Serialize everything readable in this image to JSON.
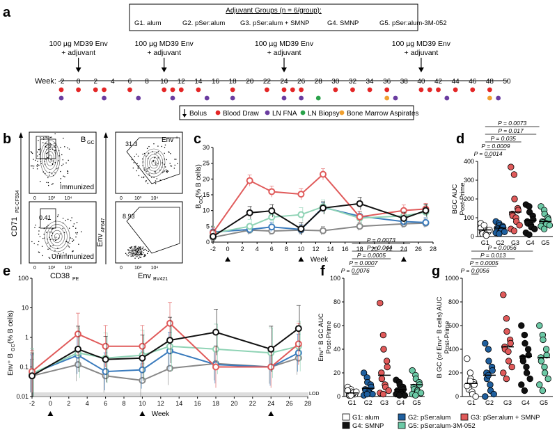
{
  "colors": {
    "G1": "#ffffff",
    "G2": "#1f5f9e",
    "G3": "#e05a5a",
    "G4": "#111111",
    "G5": "#6cc9a6",
    "line_G1": "#888888",
    "line_G2": "#3a7bbd",
    "line_G3": "#e05a5a",
    "line_G4": "#111111",
    "line_G5": "#8fd3b5",
    "blood": "#e32626",
    "fna": "#6a3ca0",
    "biopsy": "#2aa24a",
    "marrow": "#f0a030"
  },
  "panel_a": {
    "label": "a",
    "groups_title": "Adjuvant Groups (n = 6/group):",
    "groups": [
      "G1. alum",
      "G2. pSer:alum",
      "G3. pSer:alum + SMNP",
      "G4. SMNP",
      "G5. pSer:alum-3M-052"
    ],
    "immunization_label": [
      "100 µg MD39 Env",
      "+ adjuvant"
    ],
    "immunization_weeks": [
      0,
      10,
      24,
      40
    ],
    "week_label": "Week:",
    "weeks": [
      -2,
      0,
      2,
      4,
      6,
      8,
      10,
      12,
      14,
      16,
      18,
      20,
      22,
      24,
      26,
      28,
      30,
      32,
      34,
      36,
      38,
      40,
      42,
      44,
      46,
      48,
      50
    ],
    "blood_draw_weeks": [
      -2,
      0,
      2,
      3,
      6,
      10,
      11,
      12,
      14,
      18,
      22,
      24,
      25,
      26,
      30,
      32,
      34,
      36,
      40,
      41,
      42,
      44,
      46,
      48
    ],
    "fna_weeks": [
      -2,
      3,
      7,
      11,
      15,
      18,
      24,
      26,
      37,
      43,
      49
    ],
    "biopsy_weeks": [
      28
    ],
    "marrow_weeks": [
      36,
      48
    ],
    "legend": {
      "bolus": "Bolus",
      "blood": "Blood Draw",
      "fna": "LN FNA",
      "biopsy": "LN Biopsy",
      "marrow": "Bone Marrow Aspirates"
    }
  },
  "panel_b": {
    "label": "b",
    "gate1_name": "B",
    "gate1_sub": "GC",
    "gate2_name": "Env",
    "gate2_sup": "+",
    "immunized_pct1": "29.2",
    "unimmunized_pct1": "0.41",
    "immunized_pct2": "31.3",
    "unimmunized_pct2": "8.93",
    "immunized": "Immunized",
    "unimmunized": "Unimmunized",
    "ylabel1": "CD71",
    "ylabel1_sub": "PE-CF594",
    "xlabel1": "CD38",
    "xlabel1_sub": "PE",
    "ylabel2": "Env",
    "ylabel2_sub": "AF647",
    "xlabel2": "Env",
    "xlabel2_sub": "BV421",
    "ticks": [
      "0",
      "10³",
      "10⁴"
    ]
  },
  "chart_data": [
    {
      "id": "c",
      "type": "line",
      "title": "",
      "ylabel": "B_GC (% B cells)",
      "xlabel": "Week",
      "x": [
        -2,
        0,
        3,
        6,
        10,
        13,
        18,
        24,
        27
      ],
      "xlim": [
        -2,
        28
      ],
      "xticks": [
        -2,
        0,
        2,
        4,
        6,
        8,
        10,
        12,
        14,
        16,
        18,
        20,
        22,
        24,
        26,
        28
      ],
      "ylim": [
        0,
        30
      ],
      "yticks": [
        0,
        5,
        10,
        15,
        20,
        25,
        30
      ],
      "markers": [
        0,
        10,
        24
      ],
      "series": [
        {
          "name": "G1: alum",
          "values": [
            1.5,
            null,
            3.8,
            3.5,
            3.8,
            3.6,
            5.0,
            5.8,
            6.0
          ]
        },
        {
          "name": "G2: pSer:alum",
          "values": [
            3.2,
            null,
            4.0,
            4.8,
            4.0,
            11.0,
            8.2,
            6.5,
            6.2
          ]
        },
        {
          "name": "G3: pSer:alum + SMNP",
          "values": [
            3.0,
            null,
            19.5,
            16.0,
            15.2,
            21.5,
            8.0,
            10.0,
            10.5
          ]
        },
        {
          "name": "G4: SMNP",
          "values": [
            1.8,
            null,
            9.3,
            9.9,
            4.2,
            10.8,
            12.2,
            7.5,
            10.0
          ]
        },
        {
          "name": "G5: pSer:alum-3M-052",
          "values": [
            2.8,
            null,
            5.0,
            7.9,
            8.7,
            11.2,
            7.6,
            8.3,
            9.5
          ]
        }
      ]
    },
    {
      "id": "d",
      "type": "scatter",
      "ylabel": "B_GC AUC Post-Prime",
      "categories": [
        "G1",
        "G2",
        "G3",
        "G4",
        "G5"
      ],
      "ylim": [
        0,
        400
      ],
      "yticks": [
        0,
        100,
        200,
        300,
        400
      ],
      "means": [
        35,
        45,
        130,
        85,
        80
      ],
      "points": [
        [
          70,
          55,
          40,
          30,
          25,
          20,
          15,
          10,
          5,
          35,
          45,
          60
        ],
        [
          80,
          70,
          60,
          55,
          50,
          45,
          40,
          35,
          30,
          25,
          20,
          15
        ],
        [
          370,
          330,
          200,
          150,
          140,
          120,
          110,
          100,
          80,
          60,
          40,
          30
        ],
        [
          170,
          160,
          130,
          110,
          90,
          80,
          70,
          60,
          50,
          40,
          20,
          10
        ],
        [
          160,
          140,
          120,
          100,
          90,
          80,
          75,
          70,
          65,
          60,
          55,
          40
        ]
      ],
      "pvalues": [
        "P = 0.0073",
        "P = 0.017",
        "P = 0.035",
        "P = 0.0009",
        "P = 0.0014"
      ]
    },
    {
      "id": "e",
      "type": "line",
      "ylabel": "Env+ B_GC (% B cells)",
      "xlabel": "Week",
      "x": [
        -2,
        0,
        3,
        6,
        10,
        13,
        18,
        24,
        27
      ],
      "xlim": [
        -2,
        28
      ],
      "xticks": [
        -2,
        0,
        2,
        4,
        6,
        8,
        10,
        12,
        14,
        16,
        18,
        20,
        22,
        24,
        26,
        28
      ],
      "ylim_log": [
        0.01,
        100
      ],
      "yticks": [
        "0.01",
        "0.1",
        "1",
        "10",
        "100"
      ],
      "lod_label": "LOD",
      "markers": [
        0,
        10,
        24
      ],
      "series": [
        {
          "name": "G1: alum",
          "values": [
            0.05,
            null,
            0.12,
            0.05,
            0.035,
            0.09,
            0.13,
            0.1,
            0.2
          ]
        },
        {
          "name": "G2: pSer:alum",
          "values": [
            0.06,
            null,
            0.25,
            0.07,
            0.08,
            0.35,
            0.12,
            0.1,
            0.3
          ]
        },
        {
          "name": "G3: pSer:alum + SMNP",
          "values": [
            0.07,
            null,
            1.3,
            0.5,
            0.5,
            3.0,
            0.1,
            0.1,
            0.6
          ]
        },
        {
          "name": "G4: SMNP",
          "values": [
            0.05,
            null,
            0.4,
            0.18,
            0.2,
            0.8,
            1.5,
            0.4,
            2.0
          ]
        },
        {
          "name": "G5: pSer:alum-3M-052",
          "values": [
            0.06,
            null,
            0.3,
            0.2,
            0.25,
            0.5,
            0.4,
            0.3,
            0.5
          ]
        }
      ]
    },
    {
      "id": "f",
      "type": "scatter",
      "ylabel": "Env+ B_GC AUC Post-Prime",
      "categories": [
        "G1",
        "G2",
        "G3",
        "G4",
        "G5"
      ],
      "ylim": [
        0,
        100
      ],
      "yticks": [
        0,
        20,
        40,
        60,
        80,
        100
      ],
      "means": [
        3,
        7,
        18,
        6,
        10
      ],
      "points": [
        [
          8,
          6,
          4,
          3,
          2,
          1,
          1,
          2,
          3,
          4,
          5,
          1
        ],
        [
          20,
          16,
          12,
          10,
          8,
          6,
          5,
          4,
          3,
          2,
          1,
          2
        ],
        [
          79,
          52,
          40,
          30,
          25,
          20,
          15,
          10,
          8,
          5,
          3,
          2
        ],
        [
          14,
          12,
          10,
          8,
          6,
          5,
          4,
          3,
          2,
          1,
          2,
          1
        ],
        [
          22,
          18,
          15,
          12,
          10,
          8,
          6,
          5,
          4,
          3,
          2,
          1
        ]
      ],
      "pvalues": [
        "P = 0.0073",
        "P = 0.044",
        "P = 0.0005",
        "P = 0.0007",
        "P = 0.0076"
      ]
    },
    {
      "id": "g",
      "type": "scatter",
      "ylabel": "B_GC (of Env+ B cells) AUC Post-Prime",
      "categories": [
        "G1",
        "G2",
        "G3",
        "G4",
        "G5"
      ],
      "ylim": [
        0,
        1000
      ],
      "yticks": [
        0,
        200,
        400,
        600,
        800,
        1000
      ],
      "means": [
        110,
        180,
        420,
        340,
        330
      ],
      "points": [
        [
          320,
          200,
          150,
          120,
          100,
          80,
          60,
          40,
          20,
          0,
          90,
          130
        ],
        [
          450,
          400,
          300,
          250,
          220,
          200,
          150,
          100,
          50,
          20,
          0,
          180
        ],
        [
          860,
          660,
          550,
          480,
          450,
          420,
          400,
          380,
          300,
          250,
          200,
          150
        ],
        [
          600,
          520,
          450,
          400,
          350,
          330,
          300,
          250,
          200,
          150,
          100,
          50
        ],
        [
          600,
          520,
          480,
          400,
          350,
          330,
          300,
          250,
          200,
          150,
          100,
          50
        ]
      ],
      "pvalues": [
        "P = 0.0056",
        "P = 0.013",
        "P = 0.0005",
        "P = 0.0056"
      ]
    }
  ],
  "legend_bottom": [
    {
      "key": "G1",
      "label": "G1: alum"
    },
    {
      "key": "G2",
      "label": "G2: pSer:alum"
    },
    {
      "key": "G3",
      "label": "G3: pSer:alum + SMNP"
    },
    {
      "key": "G4",
      "label": "G4: SMNP"
    },
    {
      "key": "G5",
      "label": "G5: pSer:alum-3M-052"
    }
  ]
}
